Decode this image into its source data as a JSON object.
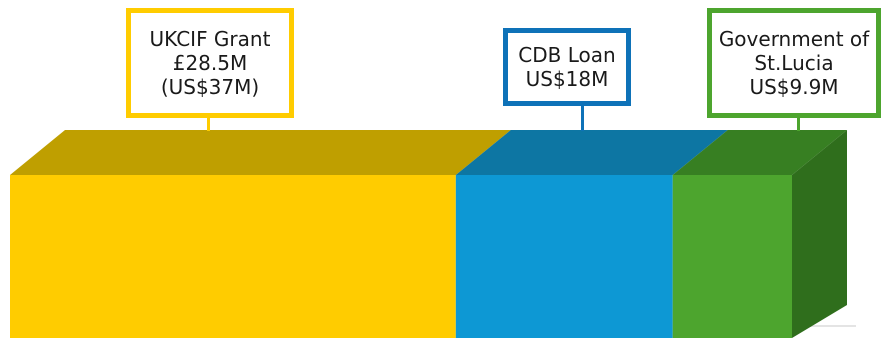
{
  "chart_data": {
    "type": "bar",
    "orientation": "horizontal-stacked",
    "segments": [
      {
        "value": 37,
        "label_lines": [
          "UKCIF Grant",
          "£28.5M",
          "(US$37M)"
        ],
        "front": "#ffcc00",
        "top": "#bf9f00",
        "side": "#a68a00",
        "border": "#ffcc00"
      },
      {
        "value": 18,
        "label_lines": [
          "CDB Loan",
          "US$18M"
        ],
        "front": "#0d98d4",
        "top": "#0d76a3",
        "side": "#0a6690",
        "border": "#0e72b8"
      },
      {
        "value": 9.9,
        "label_lines": [
          "Government of",
          "St.Lucia",
          "US$9.9M"
        ],
        "front": "#4da52e",
        "top": "#377f22",
        "side": "#2f6e1c",
        "border": "#4da52e"
      }
    ]
  }
}
